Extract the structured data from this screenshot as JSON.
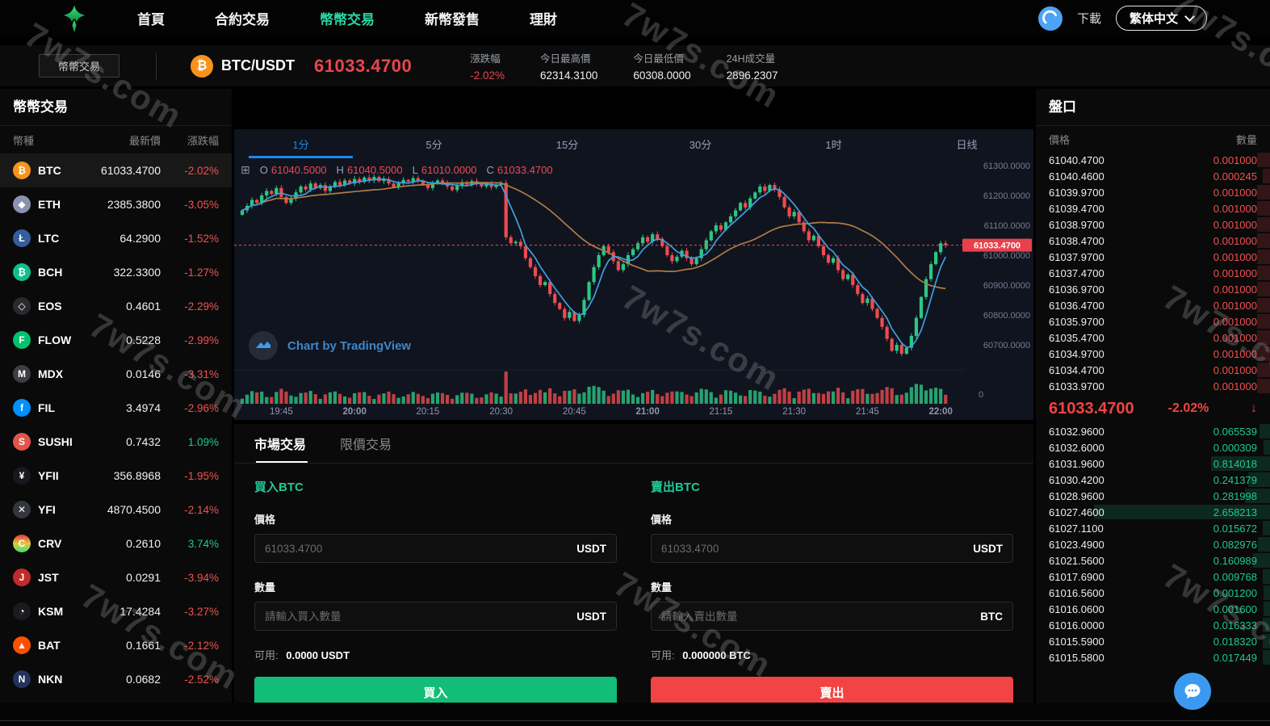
{
  "nav": {
    "items": [
      {
        "label": "首頁",
        "active": false
      },
      {
        "label": "合約交易",
        "active": false
      },
      {
        "label": "幣幣交易",
        "active": true
      },
      {
        "label": "新幣發售",
        "active": false
      },
      {
        "label": "理財",
        "active": false
      }
    ],
    "download_label": "下載",
    "language": "繁体中文"
  },
  "subheader": {
    "crumb_button": "幣幣交易",
    "pair": "BTC/USDT",
    "pair_icon": "₿",
    "price": "61033.4700",
    "stats": [
      {
        "label": "漲跌幅",
        "value": "-2.02%",
        "red": true
      },
      {
        "label": "今日最高價",
        "value": "62314.3100",
        "red": false
      },
      {
        "label": "今日最低價",
        "value": "60308.0000",
        "red": false
      },
      {
        "label": "24H成交量",
        "value": "2896.2307",
        "red": false
      }
    ]
  },
  "market": {
    "title": "幣幣交易",
    "headers": {
      "coin": "幣種",
      "price": "最新價",
      "change": "漲跌幅"
    },
    "rows": [
      {
        "sym": "BTC",
        "glyph": "₿",
        "color": "#f7931a",
        "price": "61033.4700",
        "change": "-2.02%",
        "dir": "down",
        "selected": true
      },
      {
        "sym": "ETH",
        "glyph": "◆",
        "color": "#8a92b2",
        "price": "2385.3800",
        "change": "-3.05%",
        "dir": "down",
        "selected": false
      },
      {
        "sym": "LTC",
        "glyph": "Ł",
        "color": "#345d9d",
        "price": "64.2900",
        "change": "-1.52%",
        "dir": "down",
        "selected": false
      },
      {
        "sym": "BCH",
        "glyph": "₿",
        "color": "#0ac18e",
        "price": "322.3300",
        "change": "-1.27%",
        "dir": "down",
        "selected": false
      },
      {
        "sym": "EOS",
        "glyph": "◇",
        "color": "#2a2a2e",
        "price": "0.4601",
        "change": "-2.29%",
        "dir": "down",
        "selected": false
      },
      {
        "sym": "FLOW",
        "glyph": "F",
        "color": "#00c26f",
        "price": "0.5228",
        "change": "-2.99%",
        "dir": "down",
        "selected": false
      },
      {
        "sym": "MDX",
        "glyph": "M",
        "color": "#3d3d44",
        "price": "0.0146",
        "change": "-3.31%",
        "dir": "down",
        "selected": false
      },
      {
        "sym": "FIL",
        "glyph": "f",
        "color": "#0090ff",
        "price": "3.4974",
        "change": "-2.96%",
        "dir": "down",
        "selected": false
      },
      {
        "sym": "SUSHI",
        "glyph": "S",
        "color": "#e2544a",
        "price": "0.7432",
        "change": "1.09%",
        "dir": "up",
        "selected": false
      },
      {
        "sym": "YFII",
        "glyph": "¥",
        "color": "#17191f",
        "price": "356.8968",
        "change": "-1.95%",
        "dir": "down",
        "selected": false
      },
      {
        "sym": "YFI",
        "glyph": "✕",
        "color": "#34363d",
        "price": "4870.4500",
        "change": "-2.14%",
        "dir": "down",
        "selected": false
      },
      {
        "sym": "CRV",
        "glyph": "C",
        "color": "linear-gradient(180deg,#e23a3a,#e2c83a,#3ae27a)",
        "price": "0.2610",
        "change": "3.74%",
        "dir": "up",
        "selected": false
      },
      {
        "sym": "JST",
        "glyph": "J",
        "color": "#c32b2b",
        "price": "0.0291",
        "change": "-3.94%",
        "dir": "down",
        "selected": false
      },
      {
        "sym": "KSM",
        "glyph": "◔",
        "color": "#1b1b1f",
        "price": "17.4284",
        "change": "-3.27%",
        "dir": "down",
        "selected": false
      },
      {
        "sym": "BAT",
        "glyph": "▲",
        "color": "#ff5000",
        "price": "0.1661",
        "change": "-2.12%",
        "dir": "down",
        "selected": false
      },
      {
        "sym": "NKN",
        "glyph": "N",
        "color": "#24335e",
        "price": "0.0682",
        "change": "-2.52%",
        "dir": "down",
        "selected": false
      }
    ]
  },
  "chart": {
    "tabs": [
      "1分",
      "5分",
      "15分",
      "30分",
      "1时",
      "日线"
    ],
    "active_tab": 0,
    "ohlc": {
      "o_label": "O",
      "o": "61040.5000",
      "h_label": "H",
      "h": "61040.5000",
      "l_label": "L",
      "l": "61010.0000",
      "c_label": "C",
      "c": "61033.4700"
    },
    "crosshair_icon": "⊞",
    "attribution": "Chart by TradingView"
  },
  "chart_data": {
    "type": "candlestick",
    "interval": "1m",
    "first_open": 61135,
    "closes": [
      61150,
      61165,
      61185,
      61175,
      61200,
      61215,
      61205,
      61225,
      61195,
      61175,
      61190,
      61210,
      61230,
      61220,
      61240,
      61225,
      61235,
      61215,
      61230,
      61245,
      61235,
      61250,
      61240,
      61255,
      61245,
      61260,
      61250,
      61262,
      61248,
      61255,
      61240,
      61228,
      61240,
      61252,
      61246,
      61258,
      61250,
      61236,
      61225,
      61240,
      61250,
      61242,
      61230,
      61218,
      61232,
      61244,
      61236,
      61248,
      61240,
      61230,
      61238,
      61228,
      61235,
      61242,
      61060,
      61040,
      61045,
      61030,
      60990,
      60960,
      60930,
      60900,
      60910,
      60870,
      60840,
      60820,
      60790,
      60810,
      60780,
      60800,
      60850,
      60910,
      60960,
      61000,
      61030,
      61010,
      60980,
      60950,
      60970,
      61000,
      61020,
      61040,
      61060,
      61045,
      61070,
      61055,
      61030,
      61000,
      60980,
      60995,
      61015,
      60990,
      60970,
      60990,
      61020,
      61050,
      61080,
      61100,
      61085,
      61110,
      61130,
      61150,
      61175,
      61160,
      61190,
      61210,
      61230,
      61215,
      61235,
      61220,
      61195,
      61160,
      61130,
      61145,
      61110,
      61080,
      61050,
      61065,
      61030,
      61000,
      60975,
      60990,
      60950,
      60920,
      60935,
      60900,
      60870,
      60840,
      60855,
      60820,
      60790,
      60760,
      60720,
      60680,
      60700,
      60670,
      60690,
      60730,
      60790,
      60860,
      60920,
      60970,
      61010,
      61040,
      61033.47
    ],
    "price_axis_ticks": [
      61300,
      61200,
      61100,
      61000,
      60900,
      60800,
      60700
    ],
    "volume_axis_zero": "0",
    "current_price": 61033.47,
    "current_price_label": "61033.4700",
    "time_ticks": [
      {
        "label": "19:45",
        "bold": false
      },
      {
        "label": "20:00",
        "bold": true
      },
      {
        "label": "20:15",
        "bold": false
      },
      {
        "label": "20:30",
        "bold": false
      },
      {
        "label": "20:45",
        "bold": false
      },
      {
        "label": "21:00",
        "bold": true
      },
      {
        "label": "21:15",
        "bold": false
      },
      {
        "label": "21:30",
        "bold": false
      },
      {
        "label": "21:45",
        "bold": false
      },
      {
        "label": "22:00",
        "bold": true
      }
    ],
    "ma_short_window": 5,
    "ma_long_window": 30,
    "colors": {
      "up": "#2cc784",
      "down": "#ee4b4e",
      "ma_short": "#3f9fe0",
      "ma_long": "#b07c45",
      "current_line": "#ef4b55",
      "axis_text": "#767d92",
      "time_text": "#9098ac"
    }
  },
  "trade": {
    "tabs": [
      "市場交易",
      "限價交易"
    ],
    "active_tab": 0,
    "buy": {
      "title": "買入BTC",
      "price_label": "價格",
      "price_placeholder": "61033.4700",
      "price_unit": "USDT",
      "qty_label": "數量",
      "qty_placeholder": "請輸入買入數量",
      "qty_unit": "USDT",
      "avail_label": "可用:",
      "avail_value": "0.0000 USDT",
      "button": "買入"
    },
    "sell": {
      "title": "賣出BTC",
      "price_label": "價格",
      "price_placeholder": "61033.4700",
      "price_unit": "USDT",
      "qty_label": "數量",
      "qty_placeholder": "請輸入賣出數量",
      "qty_unit": "BTC",
      "avail_label": "可用:",
      "avail_value": "0.000000 BTC",
      "button": "賣出"
    }
  },
  "orderbook": {
    "title": "盤口",
    "headers": {
      "price": "價格",
      "qty": "數量"
    },
    "asks": [
      {
        "price": "61040.4700",
        "qty": "0.001000"
      },
      {
        "price": "61040.4600",
        "qty": "0.000245"
      },
      {
        "price": "61039.9700",
        "qty": "0.001000"
      },
      {
        "price": "61039.4700",
        "qty": "0.001000"
      },
      {
        "price": "61038.9700",
        "qty": "0.001000"
      },
      {
        "price": "61038.4700",
        "qty": "0.001000"
      },
      {
        "price": "61037.9700",
        "qty": "0.001000"
      },
      {
        "price": "61037.4700",
        "qty": "0.001000"
      },
      {
        "price": "61036.9700",
        "qty": "0.001000"
      },
      {
        "price": "61036.4700",
        "qty": "0.001000"
      },
      {
        "price": "61035.9700",
        "qty": "0.001000"
      },
      {
        "price": "61035.4700",
        "qty": "0.001000"
      },
      {
        "price": "61034.9700",
        "qty": "0.001000"
      },
      {
        "price": "61034.4700",
        "qty": "0.001000"
      },
      {
        "price": "61033.9700",
        "qty": "0.001000"
      }
    ],
    "current": {
      "price": "61033.4700",
      "change": "-2.02%",
      "arrow": "↓"
    },
    "bids": [
      {
        "price": "61032.9600",
        "qty": "0.065539"
      },
      {
        "price": "61032.6000",
        "qty": "0.000309"
      },
      {
        "price": "61031.9600",
        "qty": "0.814018"
      },
      {
        "price": "61030.4200",
        "qty": "0.241379"
      },
      {
        "price": "61028.9600",
        "qty": "0.281998"
      },
      {
        "price": "61027.4600",
        "qty": "2.658213"
      },
      {
        "price": "61027.1100",
        "qty": "0.015672"
      },
      {
        "price": "61023.4900",
        "qty": "0.082976"
      },
      {
        "price": "61021.5600",
        "qty": "0.160989"
      },
      {
        "price": "61017.6900",
        "qty": "0.009768"
      },
      {
        "price": "61016.5600",
        "qty": "0.001200"
      },
      {
        "price": "61016.0600",
        "qty": "0.001600"
      },
      {
        "price": "61016.0000",
        "qty": "0.016333"
      },
      {
        "price": "61015.5900",
        "qty": "0.018320"
      },
      {
        "price": "61015.5800",
        "qty": "0.017449"
      }
    ]
  },
  "watermark": {
    "text": "7w7s.com"
  }
}
